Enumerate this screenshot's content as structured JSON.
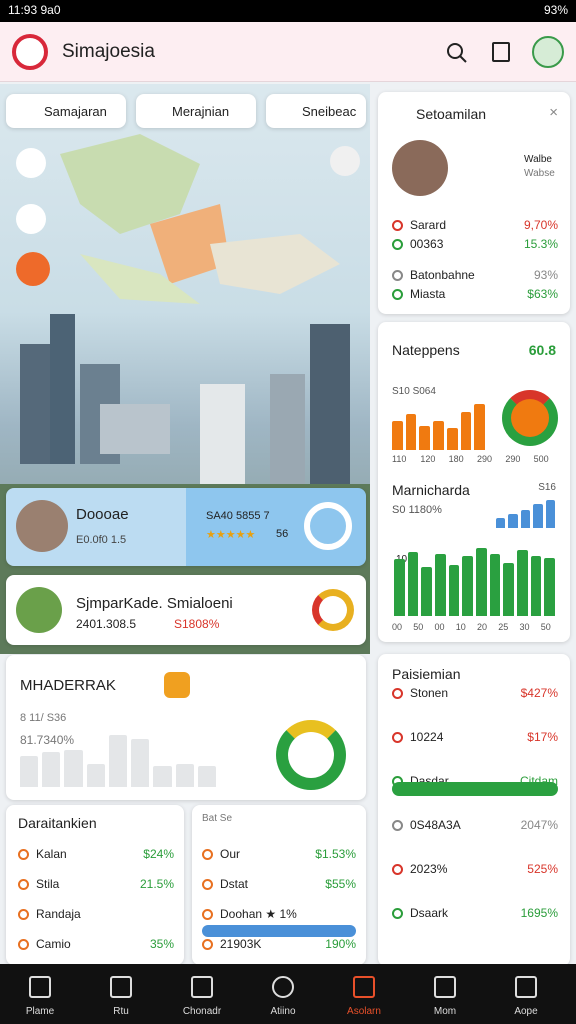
{
  "status": {
    "time": "11:93 9a0",
    "battery": "93%"
  },
  "header": {
    "title": "Simajoesia"
  },
  "tabs": [
    "Samajaran",
    "Merajnian",
    "Sneibeac"
  ],
  "map_cards": [
    {
      "title": "Doooae",
      "subtitle": "E0.0f0 1.5",
      "stat": "SA40 5855 7",
      "rating": "56"
    },
    {
      "title": "SjmparKade. Smialoeni",
      "subtitle": "2401.308.5",
      "stat": "S1808%"
    }
  ],
  "summary": {
    "title": "MHADERRAK",
    "subtitle": "8 11/ S36",
    "value": "81.7340%",
    "bars": [
      30,
      34,
      36,
      22,
      50,
      46,
      20,
      22,
      20
    ]
  },
  "list_left": {
    "title": "Daraitankien",
    "rows": [
      {
        "label": "Kalan",
        "value": "$24%"
      },
      {
        "label": "Stila",
        "value": "21.5%"
      },
      {
        "label": "Randaja",
        "value": ""
      },
      {
        "label": "Camio",
        "value": "35%"
      }
    ]
  },
  "list_mid": {
    "title": "Bat Se",
    "rows": [
      {
        "label": "Our",
        "value": "$1.53%"
      },
      {
        "label": "Dstat",
        "value": "$55%"
      },
      {
        "label": "Doohan ★ 1%",
        "value": ""
      },
      {
        "label": "21903K",
        "value": "190%"
      }
    ]
  },
  "panel": {
    "title": "Setoamilan",
    "name": "Walbe",
    "subname": "Wabse",
    "rows": [
      {
        "label": "Sarard",
        "value": "9,70%",
        "color": "r"
      },
      {
        "label": "00363",
        "value": "15.3%",
        "color": "g"
      },
      {
        "label": "Batonbahne",
        "value": "93%",
        "color": "gray"
      },
      {
        "label": "Miasta",
        "value": "$63%",
        "color": "g"
      }
    ]
  },
  "chart1": {
    "title": "Nateppens",
    "value": "60.8",
    "subtitle": "S10 S064",
    "bars": [
      24,
      30,
      20,
      24,
      18,
      32,
      38
    ],
    "x": [
      "110",
      "120",
      "180",
      "290",
      "290",
      "500"
    ]
  },
  "chart2": {
    "title": "Marnicharda",
    "value": "S16",
    "subtitle": "S0 1180%",
    "axis_label": "10",
    "top_bars": [
      10,
      14,
      18,
      24,
      28
    ],
    "bars": [
      55,
      62,
      48,
      60,
      50,
      58,
      66,
      60,
      52,
      64,
      58,
      56
    ],
    "x": [
      "00",
      "50",
      "00",
      "10",
      "20",
      "25",
      "30",
      "50"
    ]
  },
  "stats": {
    "title": "Paisiemian",
    "rows": [
      {
        "label": "Stonen",
        "value": "$427%",
        "color": "r"
      },
      {
        "label": "10224",
        "value": "$17%",
        "color": "r"
      },
      {
        "label": "Dasdar",
        "value": "Citdam",
        "color": "g"
      },
      {
        "label": "0S48A3A",
        "value": "2047%",
        "color": "gray"
      },
      {
        "label": "2023%",
        "value": "525%",
        "color": "r"
      },
      {
        "label": "Dsaark",
        "value": "1695%",
        "color": "g"
      }
    ]
  },
  "nav": [
    "Plame",
    "Rtu",
    "Chonadr",
    "Atiino",
    "Asolarn",
    "Mom",
    "Aope"
  ]
}
